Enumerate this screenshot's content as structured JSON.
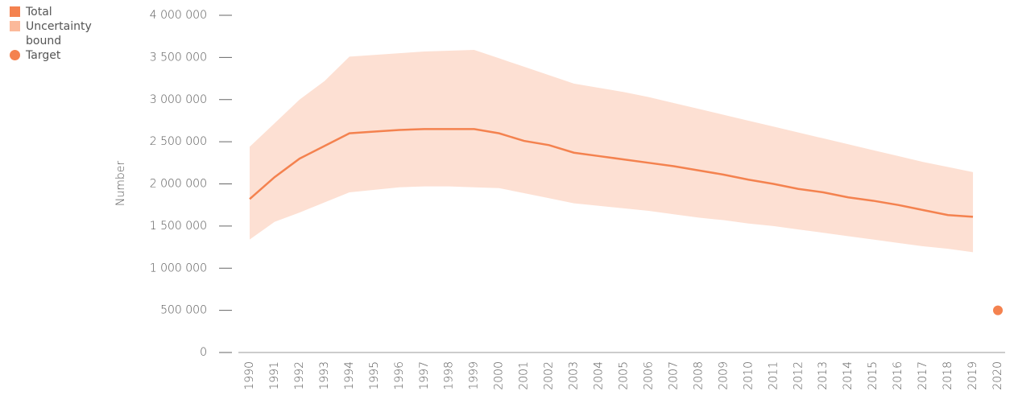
{
  "chart_data": {
    "type": "line",
    "y_label": "Number",
    "categories": [
      "1990",
      "1991",
      "1992",
      "1993",
      "1994",
      "1995",
      "1996",
      "1997",
      "1998",
      "1999",
      "2000",
      "2001",
      "2002",
      "2003",
      "2004",
      "2005",
      "2006",
      "2007",
      "2008",
      "2009",
      "2010",
      "2011",
      "2012",
      "2013",
      "2014",
      "2015",
      "2016",
      "2017",
      "2018",
      "2019",
      "2020"
    ],
    "band": {
      "name": "Uncertainty bound",
      "color": "#fbb99a",
      "fill": "#fde0d3",
      "upper": [
        2440000,
        2720000,
        3000000,
        3220000,
        3510000,
        3530000,
        3550000,
        3570000,
        3580000,
        3590000,
        3490000,
        3390000,
        3290000,
        3190000,
        3140000,
        3090000,
        3030000,
        2960000,
        2890000,
        2820000,
        2750000,
        2680000,
        2610000,
        2540000,
        2470000,
        2400000,
        2330000,
        2260000,
        2200000,
        2140000,
        null
      ],
      "lower": [
        1340000,
        1550000,
        1660000,
        1780000,
        1900000,
        1930000,
        1960000,
        1970000,
        1970000,
        1960000,
        1950000,
        1890000,
        1830000,
        1770000,
        1740000,
        1710000,
        1680000,
        1640000,
        1600000,
        1570000,
        1530000,
        1500000,
        1460000,
        1420000,
        1380000,
        1340000,
        1300000,
        1260000,
        1230000,
        1190000,
        null
      ]
    },
    "series": [
      {
        "name": "Total",
        "color": "#f4824f",
        "values": [
          1820000,
          2080000,
          2300000,
          2450000,
          2600000,
          2620000,
          2640000,
          2650000,
          2650000,
          2650000,
          2600000,
          2510000,
          2460000,
          2370000,
          2330000,
          2290000,
          2250000,
          2210000,
          2160000,
          2110000,
          2050000,
          2000000,
          1940000,
          1900000,
          1840000,
          1800000,
          1750000,
          1690000,
          1630000,
          1610000,
          null
        ]
      },
      {
        "name": "Target",
        "color": "#f4824f",
        "values": [
          null,
          null,
          null,
          null,
          null,
          null,
          null,
          null,
          null,
          null,
          null,
          null,
          null,
          null,
          null,
          null,
          null,
          null,
          null,
          null,
          null,
          null,
          null,
          null,
          null,
          null,
          null,
          null,
          null,
          null,
          500000
        ]
      }
    ],
    "ylim": [
      0,
      4000000
    ],
    "yticks": [
      0,
      {
        "value": 500000,
        "label": "500 000"
      },
      {
        "value": 1000000,
        "label": "1 000 000"
      },
      {
        "value": 1500000,
        "label": "1 500 000"
      },
      {
        "value": 2000000,
        "label": "2 000 000"
      },
      {
        "value": 2500000,
        "label": "2 500 000"
      },
      {
        "value": 3000000,
        "label": "3 000 000"
      },
      {
        "value": 3500000,
        "label": "3 500 000"
      },
      {
        "value": 4000000,
        "label": "4 000 000"
      }
    ]
  }
}
